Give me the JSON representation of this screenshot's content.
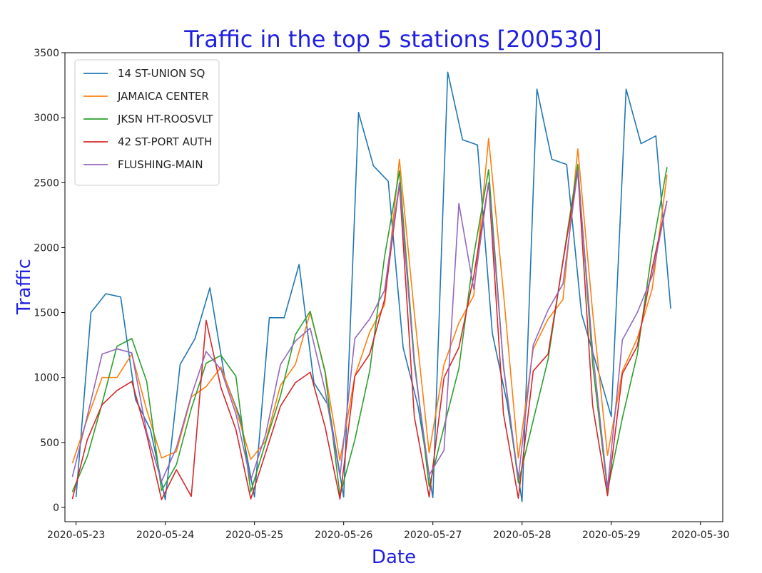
{
  "chart_data": {
    "type": "line",
    "title": "Traffic in the top 5 stations [200530]",
    "xlabel": "Date",
    "ylabel": "Traffic",
    "x_tick_labels": [
      "2020-05-23",
      "2020-05-24",
      "2020-05-25",
      "2020-05-26",
      "2020-05-27",
      "2020-05-28",
      "2020-05-29",
      "2020-05-30"
    ],
    "y_tick_labels": [
      "0",
      "500",
      "1000",
      "1500",
      "2000",
      "2500",
      "3000",
      "3500"
    ],
    "x_range": [
      "2020-05-22 21:00",
      "2020-05-30 06:00"
    ],
    "ylim": [
      -110,
      3500
    ],
    "grid": false,
    "legend_position": "top-left",
    "series": [
      {
        "name": "14 ST-UNION SQ",
        "color": "#1f77b4",
        "points": [
          [
            "2020-05-23 00:00",
            80
          ],
          [
            "2020-05-23 04:00",
            1500
          ],
          [
            "2020-05-23 08:00",
            1645
          ],
          [
            "2020-05-23 12:00",
            1620
          ],
          [
            "2020-05-23 16:00",
            830
          ],
          [
            "2020-05-23 20:00",
            600
          ],
          [
            "2020-05-24 00:00",
            60
          ],
          [
            "2020-05-24 04:00",
            1100
          ],
          [
            "2020-05-24 08:00",
            1300
          ],
          [
            "2020-05-24 12:00",
            1690
          ],
          [
            "2020-05-24 16:00",
            1000
          ],
          [
            "2020-05-24 20:00",
            700
          ],
          [
            "2020-05-25 00:00",
            80
          ],
          [
            "2020-05-25 04:00",
            1460
          ],
          [
            "2020-05-25 08:00",
            1460
          ],
          [
            "2020-05-25 12:00",
            1870
          ],
          [
            "2020-05-25 16:00",
            960
          ],
          [
            "2020-05-25 20:00",
            780
          ],
          [
            "2020-05-26 00:00",
            80
          ],
          [
            "2020-05-26 04:00",
            3040
          ],
          [
            "2020-05-26 08:00",
            2630
          ],
          [
            "2020-05-26 12:00",
            2510
          ],
          [
            "2020-05-26 16:00",
            1230
          ],
          [
            "2020-05-26 20:00",
            780
          ],
          [
            "2020-05-27 00:00",
            75
          ],
          [
            "2020-05-27 04:00",
            3350
          ],
          [
            "2020-05-27 08:00",
            2830
          ],
          [
            "2020-05-27 12:00",
            2790
          ],
          [
            "2020-05-27 16:00",
            1340
          ],
          [
            "2020-05-27 20:00",
            800
          ],
          [
            "2020-05-28 00:00",
            45
          ],
          [
            "2020-05-28 04:00",
            3220
          ],
          [
            "2020-05-28 08:00",
            2680
          ],
          [
            "2020-05-28 12:00",
            2640
          ],
          [
            "2020-05-28 16:00",
            1490
          ],
          [
            "2020-05-28 20:00",
            1100
          ],
          [
            "2020-05-29 00:00",
            700
          ],
          [
            "2020-05-29 04:00",
            3220
          ],
          [
            "2020-05-29 08:00",
            2800
          ],
          [
            "2020-05-29 12:00",
            2860
          ],
          [
            "2020-05-29 16:00",
            1530
          ]
        ]
      },
      {
        "name": "JAMAICA CENTER",
        "color": "#ff7f0e",
        "points": [
          [
            "2020-05-22 23:00",
            340
          ],
          [
            "2020-05-23 03:00",
            680
          ],
          [
            "2020-05-23 07:00",
            1000
          ],
          [
            "2020-05-23 11:00",
            1000
          ],
          [
            "2020-05-23 15:00",
            1180
          ],
          [
            "2020-05-23 19:00",
            750
          ],
          [
            "2020-05-23 23:00",
            380
          ],
          [
            "2020-05-24 03:00",
            430
          ],
          [
            "2020-05-24 07:00",
            850
          ],
          [
            "2020-05-24 11:00",
            930
          ],
          [
            "2020-05-24 15:00",
            1080
          ],
          [
            "2020-05-24 19:00",
            760
          ],
          [
            "2020-05-24 23:00",
            370
          ],
          [
            "2020-05-25 03:00",
            510
          ],
          [
            "2020-05-25 07:00",
            940
          ],
          [
            "2020-05-25 11:00",
            1100
          ],
          [
            "2020-05-25 15:00",
            1500
          ],
          [
            "2020-05-25 19:00",
            1050
          ],
          [
            "2020-05-25 23:00",
            360
          ],
          [
            "2020-05-26 03:00",
            1010
          ],
          [
            "2020-05-26 07:00",
            1350
          ],
          [
            "2020-05-26 11:00",
            1560
          ],
          [
            "2020-05-26 15:00",
            2680
          ],
          [
            "2020-05-26 19:00",
            1500
          ],
          [
            "2020-05-26 23:00",
            420
          ],
          [
            "2020-05-27 03:00",
            1100
          ],
          [
            "2020-05-27 07:00",
            1420
          ],
          [
            "2020-05-27 11:00",
            1630
          ],
          [
            "2020-05-27 15:00",
            2840
          ],
          [
            "2020-05-27 19:00",
            1650
          ],
          [
            "2020-05-27 23:00",
            380
          ],
          [
            "2020-05-28 03:00",
            1220
          ],
          [
            "2020-05-28 07:00",
            1450
          ],
          [
            "2020-05-28 11:00",
            1600
          ],
          [
            "2020-05-28 15:00",
            2760
          ],
          [
            "2020-05-28 19:00",
            1500
          ],
          [
            "2020-05-28 23:00",
            400
          ],
          [
            "2020-05-29 03:00",
            1050
          ],
          [
            "2020-05-29 07:00",
            1300
          ],
          [
            "2020-05-29 11:00",
            1680
          ],
          [
            "2020-05-29 15:00",
            2560
          ]
        ]
      },
      {
        "name": "JKSN HT-ROOSVLT",
        "color": "#2ca02c",
        "points": [
          [
            "2020-05-22 23:00",
            120
          ],
          [
            "2020-05-23 03:00",
            390
          ],
          [
            "2020-05-23 07:00",
            800
          ],
          [
            "2020-05-23 11:00",
            1240
          ],
          [
            "2020-05-23 15:00",
            1300
          ],
          [
            "2020-05-23 19:00",
            970
          ],
          [
            "2020-05-23 23:00",
            130
          ],
          [
            "2020-05-24 03:00",
            330
          ],
          [
            "2020-05-24 07:00",
            760
          ],
          [
            "2020-05-24 11:00",
            1110
          ],
          [
            "2020-05-24 15:00",
            1170
          ],
          [
            "2020-05-24 19:00",
            1010
          ],
          [
            "2020-05-24 23:00",
            120
          ],
          [
            "2020-05-25 03:00",
            500
          ],
          [
            "2020-05-25 07:00",
            860
          ],
          [
            "2020-05-25 11:00",
            1330
          ],
          [
            "2020-05-25 15:00",
            1510
          ],
          [
            "2020-05-25 19:00",
            1040
          ],
          [
            "2020-05-25 23:00",
            90
          ],
          [
            "2020-05-26 03:00",
            520
          ],
          [
            "2020-05-26 07:00",
            1050
          ],
          [
            "2020-05-26 11:00",
            1930
          ],
          [
            "2020-05-26 15:00",
            2590
          ],
          [
            "2020-05-26 19:00",
            1140
          ],
          [
            "2020-05-26 23:00",
            160
          ],
          [
            "2020-05-27 03:00",
            620
          ],
          [
            "2020-05-27 07:00",
            1070
          ],
          [
            "2020-05-27 11:00",
            1940
          ],
          [
            "2020-05-27 15:00",
            2600
          ],
          [
            "2020-05-27 19:00",
            1080
          ],
          [
            "2020-05-27 23:00",
            190
          ],
          [
            "2020-05-28 03:00",
            670
          ],
          [
            "2020-05-28 07:00",
            1140
          ],
          [
            "2020-05-28 11:00",
            1900
          ],
          [
            "2020-05-28 15:00",
            2640
          ],
          [
            "2020-05-28 19:00",
            1100
          ],
          [
            "2020-05-28 23:00",
            130
          ],
          [
            "2020-05-29 03:00",
            690
          ],
          [
            "2020-05-29 07:00",
            1180
          ],
          [
            "2020-05-29 11:00",
            1980
          ],
          [
            "2020-05-29 15:00",
            2620
          ]
        ]
      },
      {
        "name": "42 ST-PORT AUTH",
        "color": "#d62728",
        "points": [
          [
            "2020-05-22 23:00",
            65
          ],
          [
            "2020-05-23 03:00",
            520
          ],
          [
            "2020-05-23 07:00",
            790
          ],
          [
            "2020-05-23 11:00",
            900
          ],
          [
            "2020-05-23 15:00",
            970
          ],
          [
            "2020-05-23 19:00",
            560
          ],
          [
            "2020-05-23 23:00",
            60
          ],
          [
            "2020-05-24 03:00",
            290
          ],
          [
            "2020-05-24 07:00",
            85
          ],
          [
            "2020-05-24 11:00",
            1440
          ],
          [
            "2020-05-24 15:00",
            920
          ],
          [
            "2020-05-24 19:00",
            600
          ],
          [
            "2020-05-24 23:00",
            65
          ],
          [
            "2020-05-25 03:00",
            420
          ],
          [
            "2020-05-25 07:00",
            780
          ],
          [
            "2020-05-25 11:00",
            960
          ],
          [
            "2020-05-25 15:00",
            1040
          ],
          [
            "2020-05-25 19:00",
            620
          ],
          [
            "2020-05-25 23:00",
            65
          ],
          [
            "2020-05-26 03:00",
            1010
          ],
          [
            "2020-05-26 07:00",
            1180
          ],
          [
            "2020-05-26 11:00",
            1600
          ],
          [
            "2020-05-26 15:00",
            2490
          ],
          [
            "2020-05-26 19:00",
            700
          ],
          [
            "2020-05-26 23:00",
            80
          ],
          [
            "2020-05-27 03:00",
            1000
          ],
          [
            "2020-05-27 07:00",
            1230
          ],
          [
            "2020-05-27 11:00",
            1780
          ],
          [
            "2020-05-27 15:00",
            2500
          ],
          [
            "2020-05-27 19:00",
            720
          ],
          [
            "2020-05-27 23:00",
            70
          ],
          [
            "2020-05-28 03:00",
            1050
          ],
          [
            "2020-05-28 07:00",
            1180
          ],
          [
            "2020-05-28 11:00",
            1890
          ],
          [
            "2020-05-28 15:00",
            2590
          ],
          [
            "2020-05-28 19:00",
            780
          ],
          [
            "2020-05-28 23:00",
            90
          ],
          [
            "2020-05-29 03:00",
            1030
          ],
          [
            "2020-05-29 07:00",
            1240
          ],
          [
            "2020-05-29 11:00",
            1840
          ],
          [
            "2020-05-29 15:00",
            2360
          ]
        ]
      },
      {
        "name": "FLUSHING-MAIN",
        "color": "#9467bd",
        "points": [
          [
            "2020-05-22 23:00",
            235
          ],
          [
            "2020-05-23 03:00",
            700
          ],
          [
            "2020-05-23 07:00",
            1180
          ],
          [
            "2020-05-23 11:00",
            1220
          ],
          [
            "2020-05-23 15:00",
            1190
          ],
          [
            "2020-05-23 19:00",
            580
          ],
          [
            "2020-05-23 23:00",
            200
          ],
          [
            "2020-05-24 03:00",
            460
          ],
          [
            "2020-05-24 07:00",
            860
          ],
          [
            "2020-05-24 11:00",
            1200
          ],
          [
            "2020-05-24 15:00",
            1060
          ],
          [
            "2020-05-24 19:00",
            720
          ],
          [
            "2020-05-24 23:00",
            210
          ],
          [
            "2020-05-25 03:00",
            560
          ],
          [
            "2020-05-25 07:00",
            1100
          ],
          [
            "2020-05-25 11:00",
            1280
          ],
          [
            "2020-05-25 15:00",
            1380
          ],
          [
            "2020-05-25 19:00",
            900
          ],
          [
            "2020-05-25 23:00",
            240
          ],
          [
            "2020-05-26 03:00",
            1300
          ],
          [
            "2020-05-26 07:00",
            1450
          ],
          [
            "2020-05-26 11:00",
            1670
          ],
          [
            "2020-05-26 15:00",
            2500
          ],
          [
            "2020-05-26 19:00",
            1100
          ],
          [
            "2020-05-26 23:00",
            250
          ],
          [
            "2020-05-27 03:00",
            440
          ],
          [
            "2020-05-27 07:00",
            2340
          ],
          [
            "2020-05-27 11:00",
            1680
          ],
          [
            "2020-05-27 15:00",
            2500
          ],
          [
            "2020-05-27 19:00",
            1090
          ],
          [
            "2020-05-27 23:00",
            220
          ],
          [
            "2020-05-28 03:00",
            1250
          ],
          [
            "2020-05-28 07:00",
            1520
          ],
          [
            "2020-05-28 11:00",
            1720
          ],
          [
            "2020-05-28 15:00",
            2600
          ],
          [
            "2020-05-28 19:00",
            1200
          ],
          [
            "2020-05-28 23:00",
            150
          ],
          [
            "2020-05-29 03:00",
            1290
          ],
          [
            "2020-05-29 07:00",
            1500
          ],
          [
            "2020-05-29 11:00",
            1780
          ],
          [
            "2020-05-29 15:00",
            2360
          ]
        ]
      }
    ]
  }
}
